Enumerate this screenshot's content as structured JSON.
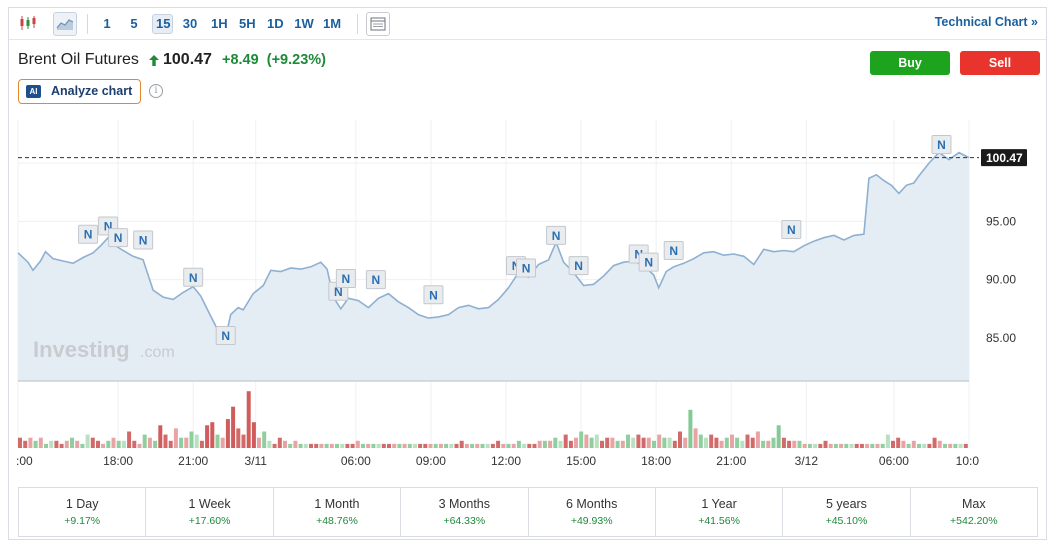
{
  "toolbar": {
    "timeframes": [
      "1",
      "5",
      "15",
      "30",
      "1H",
      "5H",
      "1D",
      "1W",
      "1M"
    ],
    "active_timeframe": "15",
    "technical_chart_label": "Technical Chart",
    "technical_chart_arrow": "»",
    "icons": [
      "candlestick-icon",
      "area-chart-icon",
      "layout-icon"
    ]
  },
  "instrument": {
    "name": "Brent Oil Futures",
    "price": "100.47",
    "change": "+8.49",
    "change_pct": "(+9.23%)",
    "direction": "up"
  },
  "analyze": {
    "badge": "AI",
    "label": "Analyze chart",
    "info": "i"
  },
  "trade": {
    "buy_label": "Buy",
    "sell_label": "Sell"
  },
  "watermark": {
    "brand": "Investing",
    "suffix": ".com"
  },
  "chart_data": {
    "type": "area",
    "title": "",
    "ylim": [
      81.3,
      103.7
    ],
    "y_ticks": [
      "85.00",
      "90.00",
      "95.00"
    ],
    "last_price_label": "100.47",
    "last_price": 100.47,
    "x_tick_labels": [
      ":00",
      "18:00",
      "21:00",
      "3/11",
      "06:00",
      "09:00",
      "12:00",
      "15:00",
      "18:00",
      "21:00",
      "3/12",
      "06:00",
      "10:0"
    ],
    "x_range": [
      0,
      38
    ],
    "x_ticks": [
      0,
      4,
      7,
      9.5,
      13.5,
      16.5,
      19.5,
      22.5,
      25.5,
      28.5,
      31.5,
      35,
      38
    ],
    "series": [
      {
        "values": [
          [
            0,
            92.3
          ],
          [
            0.4,
            91.5
          ],
          [
            0.6,
            90.8
          ],
          [
            0.9,
            91.6
          ],
          [
            1.1,
            92.4
          ],
          [
            1.4,
            91.8
          ],
          [
            1.8,
            91.6
          ],
          [
            2.2,
            91.4
          ],
          [
            2.6,
            91.9
          ],
          [
            3.0,
            92.3
          ],
          [
            3.3,
            92.9
          ],
          [
            3.6,
            93.6
          ],
          [
            3.9,
            92.9
          ],
          [
            4.2,
            92.5
          ],
          [
            4.6,
            92.0
          ],
          [
            5.0,
            91.7
          ],
          [
            5.4,
            89.1
          ],
          [
            5.8,
            88.5
          ],
          [
            6.2,
            88.3
          ],
          [
            6.6,
            88.9
          ],
          [
            7.0,
            89.4
          ],
          [
            7.3,
            88.6
          ],
          [
            7.6,
            87.3
          ],
          [
            8.0,
            85.6
          ],
          [
            8.25,
            84.6
          ],
          [
            8.5,
            87.0
          ],
          [
            8.8,
            87.6
          ],
          [
            9.0,
            87.4
          ],
          [
            9.4,
            88.8
          ],
          [
            9.8,
            89.5
          ],
          [
            10.1,
            90.8
          ],
          [
            10.5,
            90.7
          ],
          [
            10.9,
            91.0
          ],
          [
            11.3,
            90.9
          ],
          [
            11.7,
            91.1
          ],
          [
            12.1,
            91.5
          ],
          [
            12.35,
            90.9
          ],
          [
            12.6,
            88.5
          ],
          [
            12.9,
            87.5
          ],
          [
            13.2,
            88.4
          ],
          [
            13.6,
            88.2
          ],
          [
            14.0,
            87.6
          ],
          [
            14.4,
            88.4
          ],
          [
            14.8,
            88.8
          ],
          [
            15.2,
            88.1
          ],
          [
            15.6,
            87.6
          ],
          [
            16.0,
            87.0
          ],
          [
            16.4,
            86.7
          ],
          [
            16.8,
            86.8
          ],
          [
            17.2,
            87.0
          ],
          [
            17.6,
            87.6
          ],
          [
            18.0,
            87.8
          ],
          [
            18.4,
            87.5
          ],
          [
            18.8,
            87.6
          ],
          [
            19.2,
            88.3
          ],
          [
            19.6,
            89.3
          ],
          [
            20.0,
            90.6
          ],
          [
            20.4,
            90.2
          ],
          [
            20.8,
            91.3
          ],
          [
            21.2,
            91.7
          ],
          [
            21.5,
            93.2
          ],
          [
            21.8,
            91.5
          ],
          [
            22.2,
            90.6
          ],
          [
            22.6,
            89.5
          ],
          [
            23.0,
            89.6
          ],
          [
            23.4,
            90.3
          ],
          [
            23.8,
            91.2
          ],
          [
            24.2,
            91.5
          ],
          [
            24.6,
            91.6
          ],
          [
            25.0,
            91.2
          ],
          [
            25.4,
            90.4
          ],
          [
            25.6,
            89.3
          ],
          [
            25.9,
            90.7
          ],
          [
            26.2,
            91.1
          ],
          [
            26.6,
            91.4
          ],
          [
            27.0,
            91.8
          ],
          [
            27.4,
            92.3
          ],
          [
            27.8,
            92.4
          ],
          [
            28.2,
            92.1
          ],
          [
            28.6,
            92.2
          ],
          [
            29.0,
            92.0
          ],
          [
            29.4,
            91.3
          ],
          [
            29.8,
            92.6
          ],
          [
            30.2,
            92.4
          ],
          [
            30.6,
            92.5
          ],
          [
            31.0,
            92.4
          ],
          [
            31.4,
            92.9
          ],
          [
            31.8,
            93.3
          ],
          [
            32.2,
            93.6
          ],
          [
            32.6,
            93.8
          ],
          [
            33.0,
            93.4
          ],
          [
            33.4,
            93.8
          ],
          [
            33.8,
            93.9
          ],
          [
            34.0,
            98.7
          ],
          [
            34.3,
            99.0
          ],
          [
            34.6,
            98.5
          ],
          [
            34.9,
            98.1
          ],
          [
            35.2,
            97.4
          ],
          [
            35.5,
            98.1
          ],
          [
            35.8,
            98.3
          ],
          [
            36.0,
            98.9
          ],
          [
            36.4,
            100.0
          ],
          [
            36.8,
            100.9
          ],
          [
            37.2,
            100.3
          ],
          [
            37.6,
            100.9
          ],
          [
            38.0,
            100.47
          ]
        ]
      }
    ],
    "news_markers": [
      [
        2.8,
        93.9
      ],
      [
        3.6,
        94.6
      ],
      [
        4.0,
        93.6
      ],
      [
        5.0,
        93.4
      ],
      [
        7.0,
        90.2
      ],
      [
        8.3,
        85.2
      ],
      [
        12.8,
        89.0
      ],
      [
        13.1,
        90.1
      ],
      [
        14.3,
        90.0
      ],
      [
        16.6,
        88.7
      ],
      [
        19.9,
        91.2
      ],
      [
        20.3,
        91.0
      ],
      [
        21.5,
        93.8
      ],
      [
        22.4,
        91.2
      ],
      [
        24.8,
        92.2
      ],
      [
        25.2,
        91.5
      ],
      [
        26.2,
        92.5
      ],
      [
        30.9,
        94.3
      ],
      [
        36.9,
        101.6
      ]
    ],
    "news_marker_label": "N",
    "volume": [
      3,
      2,
      3,
      2,
      3,
      1,
      2,
      2,
      1,
      2,
      3,
      2,
      1,
      4,
      3,
      2,
      1,
      2,
      3,
      2,
      2,
      5,
      2,
      1,
      4,
      3,
      2,
      7,
      4,
      2,
      6,
      3,
      3,
      5,
      4,
      2,
      7,
      8,
      4,
      3,
      9,
      13,
      6,
      4,
      18,
      8,
      3,
      5,
      2,
      1,
      3,
      2,
      1,
      2,
      1,
      1,
      1,
      1,
      1,
      1,
      1,
      1,
      1,
      1,
      1,
      2,
      1,
      1,
      1,
      1,
      1,
      1,
      1,
      1,
      1,
      1,
      1,
      1,
      1,
      1,
      1,
      1,
      1,
      1,
      1,
      2,
      1,
      1,
      1,
      1,
      1,
      1,
      2,
      1,
      1,
      1,
      2,
      1,
      1,
      1,
      2,
      2,
      2,
      3,
      2,
      4,
      2,
      3,
      5,
      4,
      3,
      4,
      2,
      3,
      3,
      2,
      2,
      4,
      3,
      4,
      3,
      3,
      2,
      4,
      3,
      3,
      2,
      5,
      3,
      12,
      6,
      4,
      3,
      4,
      3,
      2,
      3,
      4,
      3,
      2,
      4,
      3,
      5,
      2,
      2,
      3,
      7,
      3,
      2,
      2,
      2,
      1,
      1,
      1,
      1,
      2,
      1,
      1,
      1,
      1,
      1,
      1,
      1,
      1,
      1,
      1,
      1,
      4,
      2,
      3,
      2,
      1,
      2,
      1,
      1,
      1,
      3,
      2,
      1,
      1,
      1,
      1,
      1
    ],
    "volume_color_pattern": [
      "#d26a6a",
      "#d26a6a",
      "#e8a4a4",
      "#8fcf9e",
      "#e8a4a4",
      "#8fcf9e",
      "#b9e0c1"
    ]
  }
}
